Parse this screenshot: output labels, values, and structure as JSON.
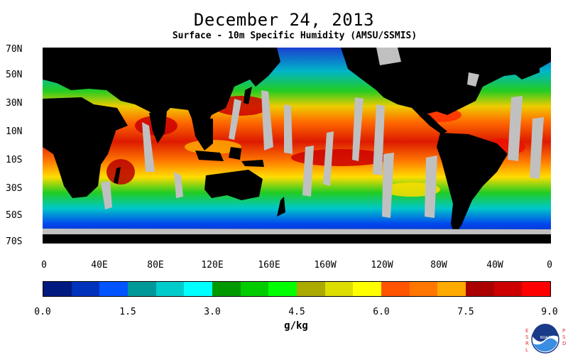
{
  "title": "December 24, 2013",
  "subtitle": "Surface - 10m Specific Humidity (AMSU/SSMIS)",
  "lat_labels": [
    "70N",
    "50N",
    "30N",
    "10N",
    "10S",
    "30S",
    "50S",
    "70S"
  ],
  "lon_labels": [
    "0",
    "40E",
    "80E",
    "120E",
    "160E",
    "160W",
    "120W",
    "80W",
    "40W",
    "0"
  ],
  "colorbar": {
    "colors": [
      "#001a80",
      "#0033bb",
      "#0055ff",
      "#009999",
      "#00cccc",
      "#00ffff",
      "#009900",
      "#00cc00",
      "#00ff00",
      "#aaaa00",
      "#dddd00",
      "#ffff00",
      "#ff5500",
      "#ff7700",
      "#ffaa00",
      "#aa0000",
      "#cc0000",
      "#ff0000"
    ],
    "tick_labels": [
      "0.0",
      "1.5",
      "3.0",
      "4.5",
      "6.0",
      "7.5",
      "9.0"
    ],
    "units": "g/kg"
  },
  "colors": {
    "land": "#000000",
    "missing": "#c0c0c0",
    "sea_ice": "#bdbdbd"
  },
  "logo": {
    "side_left": "ESRL",
    "side_right": "PSD",
    "name": "NOAA"
  }
}
